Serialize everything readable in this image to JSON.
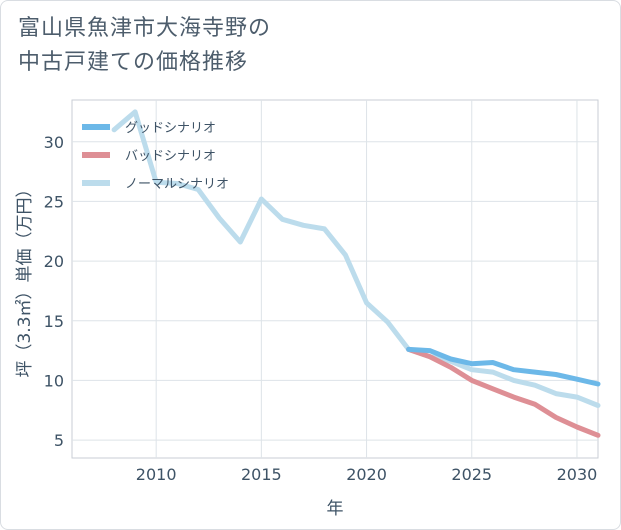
{
  "title_lines": [
    "富山県魚津市大海寺野の",
    "中古戸建ての価格推移"
  ],
  "chart_data": {
    "type": "line",
    "title": "富山県魚津市大海寺野の中古戸建ての価格推移",
    "xlabel": "年",
    "ylabel": "坪（3.3㎡）単価（万円）",
    "xlim": [
      2006,
      2031
    ],
    "ylim": [
      3.5,
      33.5
    ],
    "x_ticks": [
      2010,
      2015,
      2020,
      2025,
      2030
    ],
    "y_ticks": [
      5,
      10,
      15,
      20,
      25,
      30
    ],
    "grid": true,
    "legend_position": "top-left",
    "series": [
      {
        "name": "グッドシナリオ",
        "color": "#6cb8e8",
        "x": [
          2022,
          2023,
          2024,
          2025,
          2026,
          2027,
          2028,
          2029,
          2030,
          2031
        ],
        "y": [
          12.6,
          12.5,
          11.8,
          11.4,
          11.5,
          10.9,
          10.7,
          10.5,
          10.1,
          9.7
        ]
      },
      {
        "name": "バッドシナリオ",
        "color": "#de8f95",
        "x": [
          2022,
          2023,
          2024,
          2025,
          2026,
          2027,
          2028,
          2029,
          2030,
          2031
        ],
        "y": [
          12.6,
          12.0,
          11.1,
          10.0,
          9.3,
          8.6,
          8.0,
          6.9,
          6.1,
          5.4
        ]
      },
      {
        "name": "ノーマルシナリオ",
        "color": "#bcdcec",
        "x": [
          2008,
          2009,
          2010,
          2011,
          2012,
          2013,
          2014,
          2015,
          2016,
          2017,
          2018,
          2019,
          2020,
          2021,
          2022,
          2023,
          2024,
          2025,
          2026,
          2027,
          2028,
          2029,
          2030,
          2031
        ],
        "y": [
          31.0,
          32.5,
          26.6,
          26.5,
          26.0,
          23.6,
          21.6,
          25.2,
          23.5,
          23.0,
          22.7,
          20.5,
          16.5,
          14.9,
          12.6,
          12.0,
          11.6,
          10.9,
          10.7,
          10.0,
          9.6,
          8.9,
          8.6,
          7.9
        ]
      }
    ]
  }
}
